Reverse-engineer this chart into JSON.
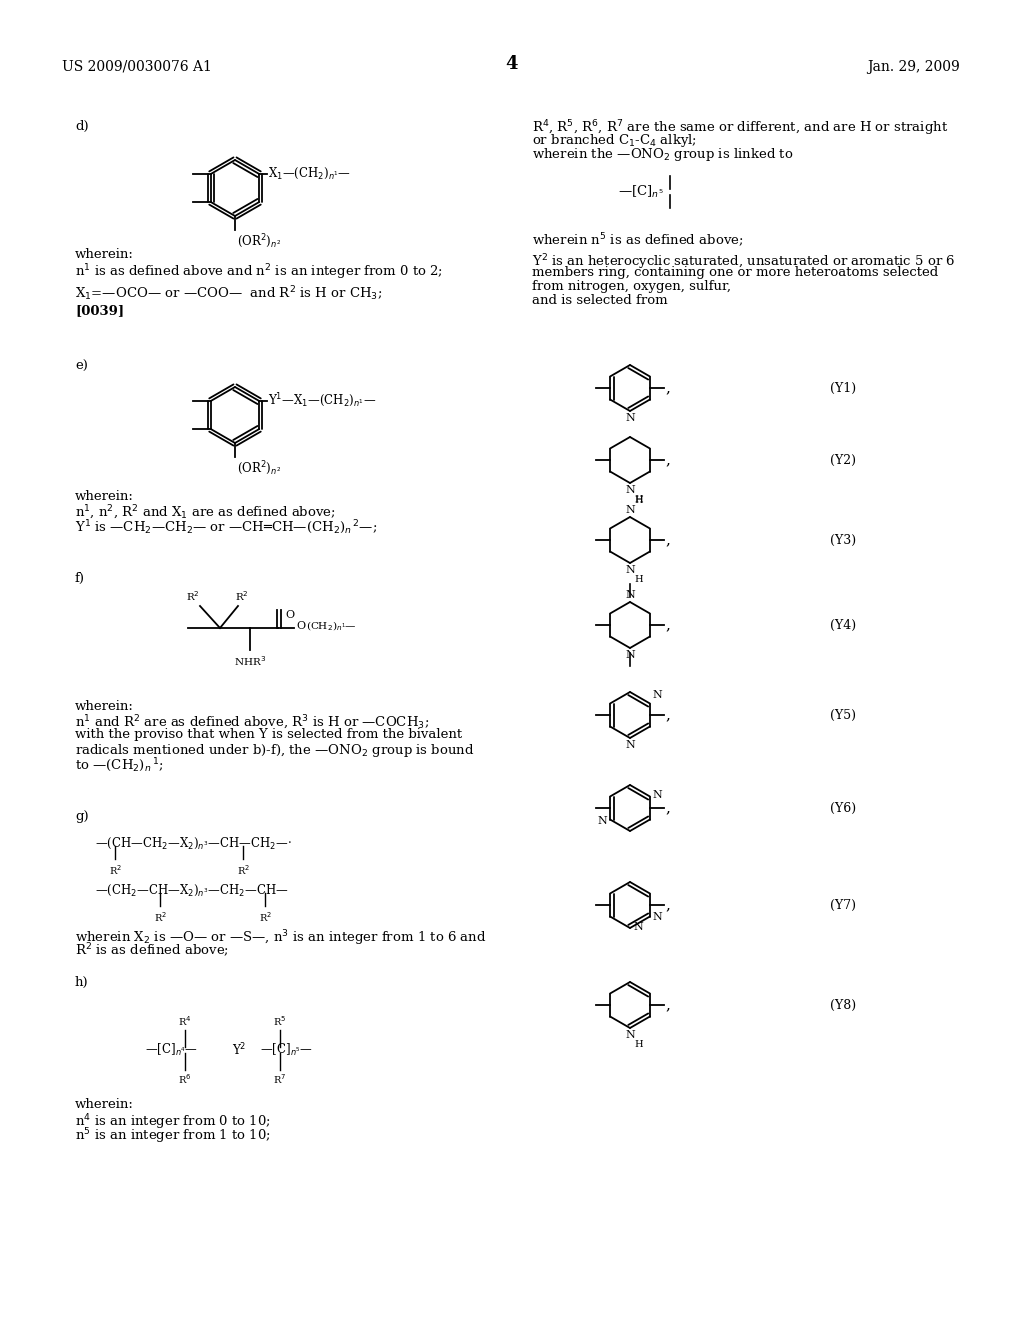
{
  "bg_color": "#ffffff",
  "header_left": "US 2009/0030076 A1",
  "header_right": "Jan. 29, 2009",
  "page_number": "4"
}
